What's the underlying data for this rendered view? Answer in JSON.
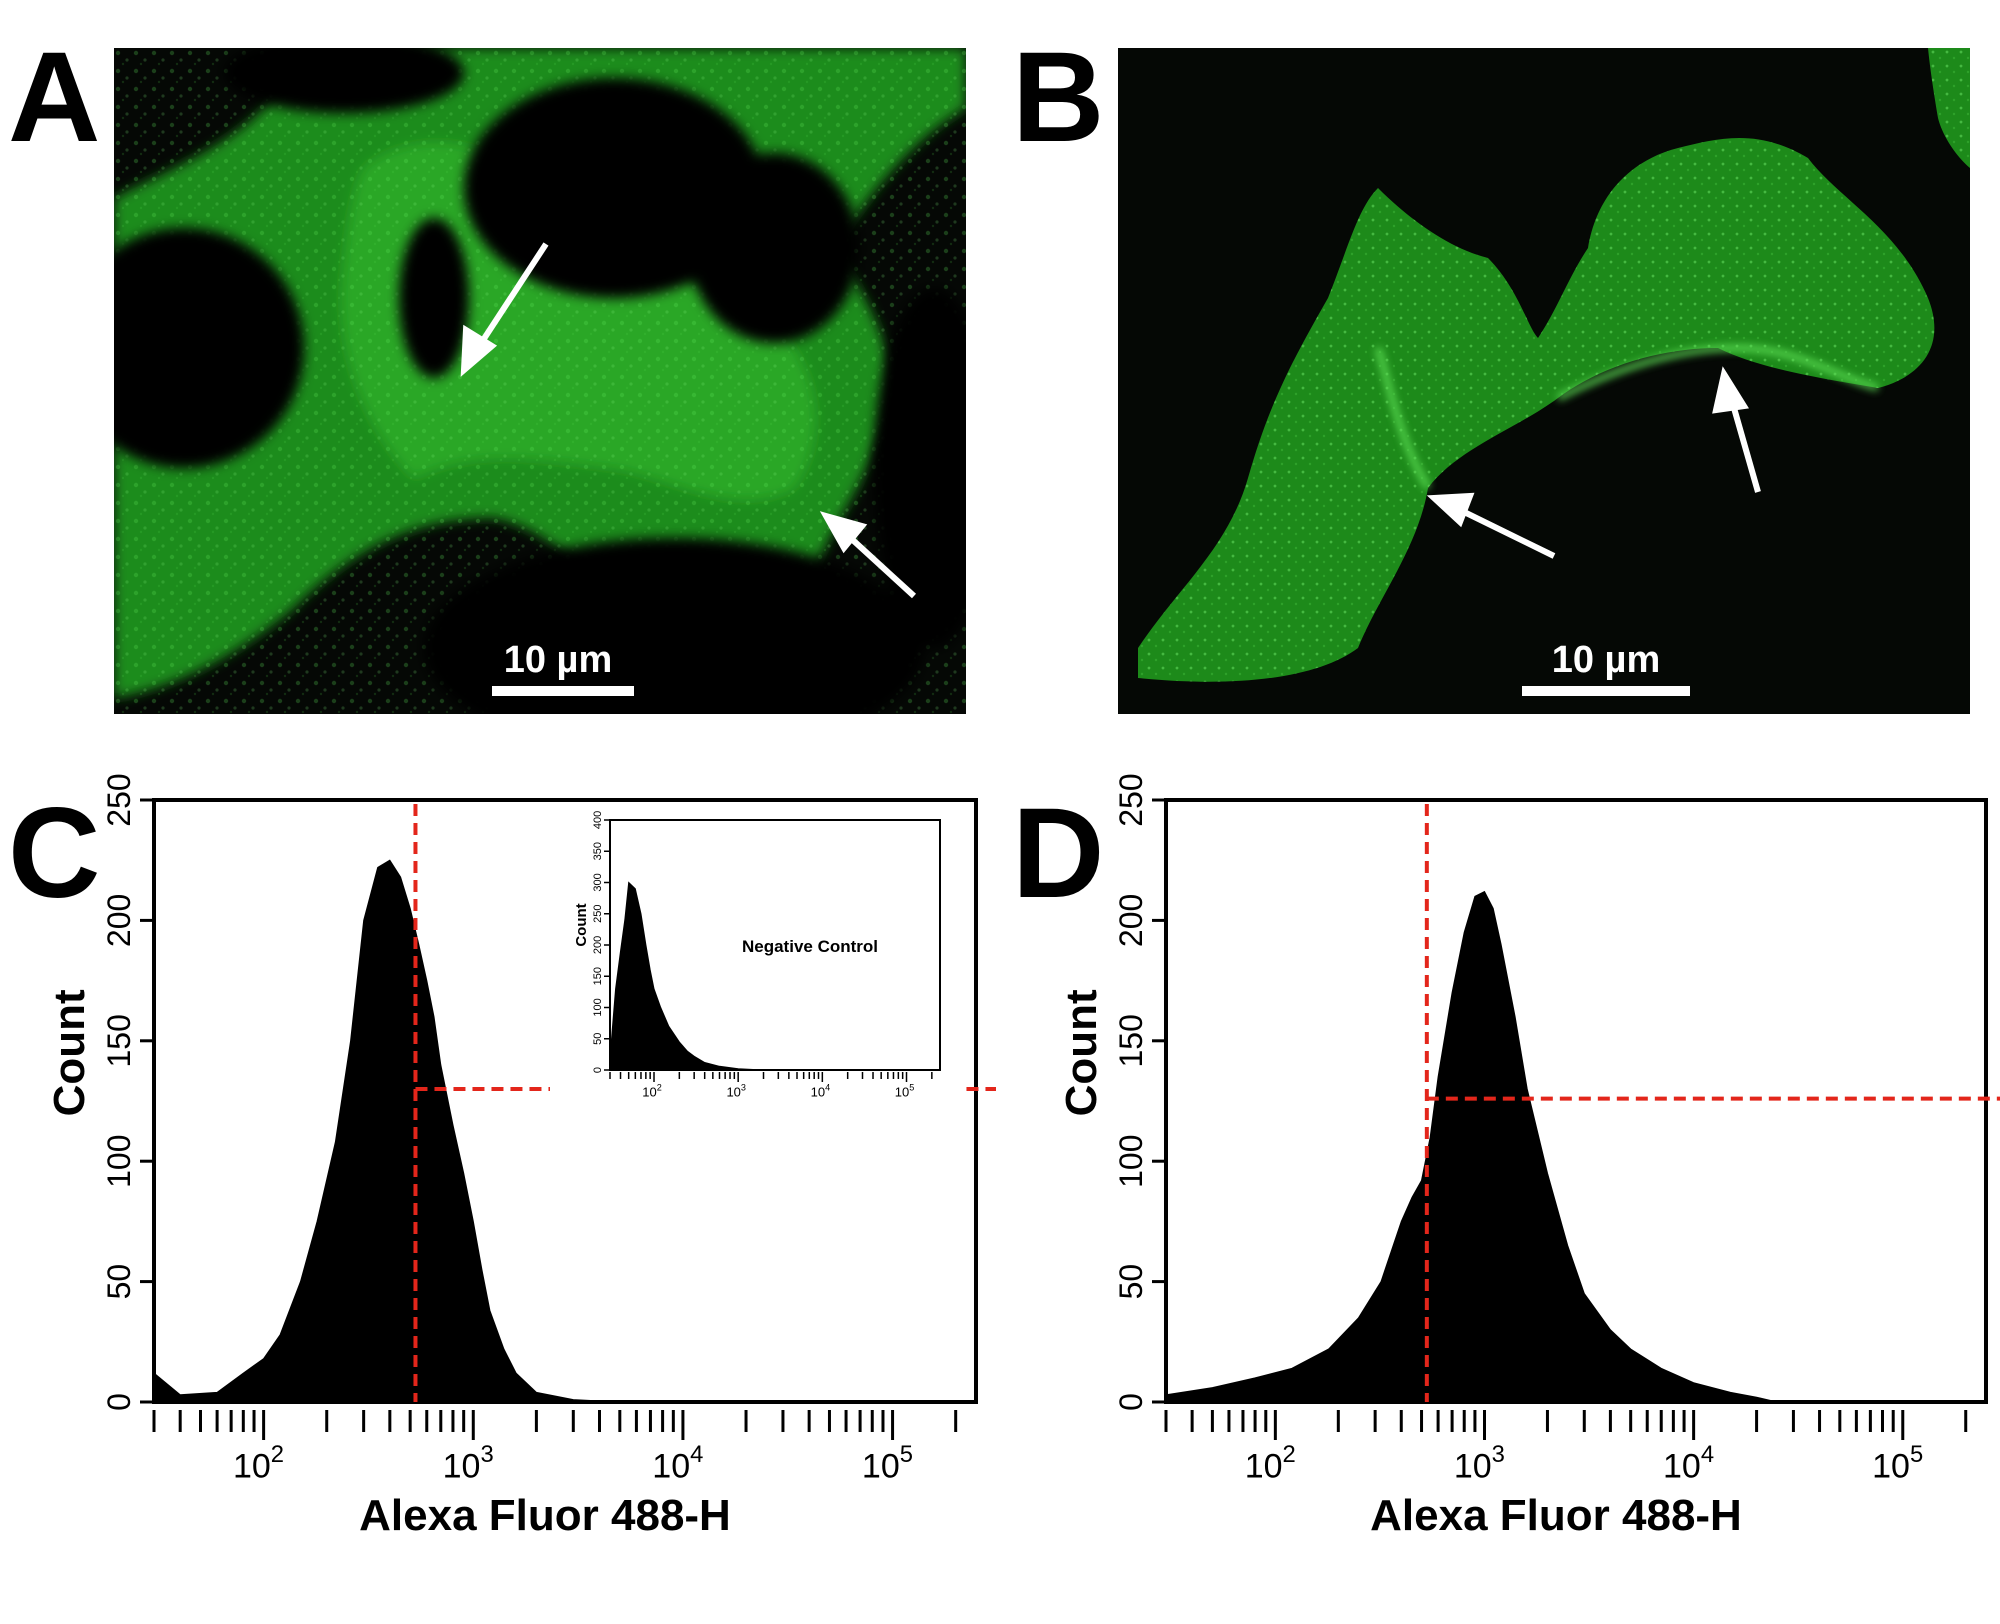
{
  "panels": {
    "A": {
      "letter": "A",
      "scale_bar": "10 µm"
    },
    "B": {
      "letter": "B",
      "scale_bar": "10 µm"
    },
    "C": {
      "letter": "C"
    },
    "D": {
      "letter": "D"
    }
  },
  "colors": {
    "fluorescence": "#22c01e",
    "gate": "#e3261b",
    "histogram": "#000000"
  },
  "chart_data": [
    {
      "id": "C",
      "type": "area",
      "xlabel": "Alexa Fluor 488-H",
      "ylabel": "Count",
      "x_scale": "log",
      "xlim": [
        30,
        250000
      ],
      "ylim": [
        0,
        250
      ],
      "yticks": [
        "0",
        "50",
        "100",
        "150",
        "200",
        "250"
      ],
      "xticks": [
        {
          "base": "10",
          "exp": "2"
        },
        {
          "base": "10",
          "exp": "3"
        },
        {
          "base": "10",
          "exp": "4"
        },
        {
          "base": "10",
          "exp": "5"
        }
      ],
      "gate": {
        "x": 530,
        "y": 130
      },
      "x": [
        30,
        40,
        60,
        80,
        100,
        120,
        150,
        180,
        220,
        260,
        300,
        350,
        400,
        450,
        500,
        550,
        600,
        650,
        700,
        800,
        900,
        1000,
        1100,
        1200,
        1400,
        1600,
        2000,
        3000,
        5000,
        250000
      ],
      "y": [
        12,
        3,
        4,
        12,
        18,
        28,
        50,
        75,
        108,
        150,
        200,
        222,
        225,
        218,
        205,
        190,
        175,
        160,
        140,
        115,
        95,
        75,
        55,
        38,
        22,
        12,
        4,
        1,
        0,
        0
      ],
      "inset": {
        "label": "Negative Control",
        "ylabel": "Count",
        "x_scale": "log",
        "xlim": [
          30,
          250000
        ],
        "ylim": [
          0,
          400
        ],
        "yticks": [
          "0",
          "50",
          "100",
          "150",
          "200",
          "250",
          "300",
          "350",
          "400"
        ],
        "xticks": [
          {
            "base": "10",
            "exp": "2"
          },
          {
            "base": "10",
            "exp": "3"
          },
          {
            "base": "10",
            "exp": "4"
          },
          {
            "base": "10",
            "exp": "5"
          }
        ],
        "x": [
          30,
          35,
          40,
          45,
          50,
          60,
          70,
          80,
          90,
          100,
          120,
          150,
          200,
          250,
          300,
          400,
          600,
          1000,
          2000,
          250000
        ],
        "y": [
          20,
          130,
          190,
          240,
          300,
          290,
          250,
          200,
          160,
          130,
          100,
          70,
          45,
          30,
          22,
          12,
          6,
          2,
          0,
          0
        ]
      }
    },
    {
      "id": "D",
      "type": "area",
      "xlabel": "Alexa Fluor 488-H",
      "ylabel": "Count",
      "x_scale": "log",
      "xlim": [
        30,
        250000
      ],
      "ylim": [
        0,
        250
      ],
      "yticks": [
        "0",
        "50",
        "100",
        "150",
        "200",
        "250"
      ],
      "xticks": [
        {
          "base": "10",
          "exp": "2"
        },
        {
          "base": "10",
          "exp": "3"
        },
        {
          "base": "10",
          "exp": "4"
        },
        {
          "base": "10",
          "exp": "5"
        }
      ],
      "gate": {
        "x": 530,
        "y": 126
      },
      "x": [
        30,
        50,
        80,
        120,
        180,
        250,
        320,
        400,
        450,
        500,
        550,
        600,
        700,
        800,
        900,
        1000,
        1100,
        1200,
        1400,
        1600,
        2000,
        2500,
        3000,
        4000,
        5000,
        7000,
        10000,
        15000,
        20000,
        25000,
        250000
      ],
      "y": [
        3,
        6,
        10,
        14,
        22,
        35,
        50,
        75,
        85,
        92,
        110,
        135,
        170,
        195,
        210,
        212,
        205,
        190,
        160,
        130,
        95,
        65,
        45,
        30,
        22,
        14,
        8,
        4,
        2,
        0,
        0
      ]
    }
  ]
}
